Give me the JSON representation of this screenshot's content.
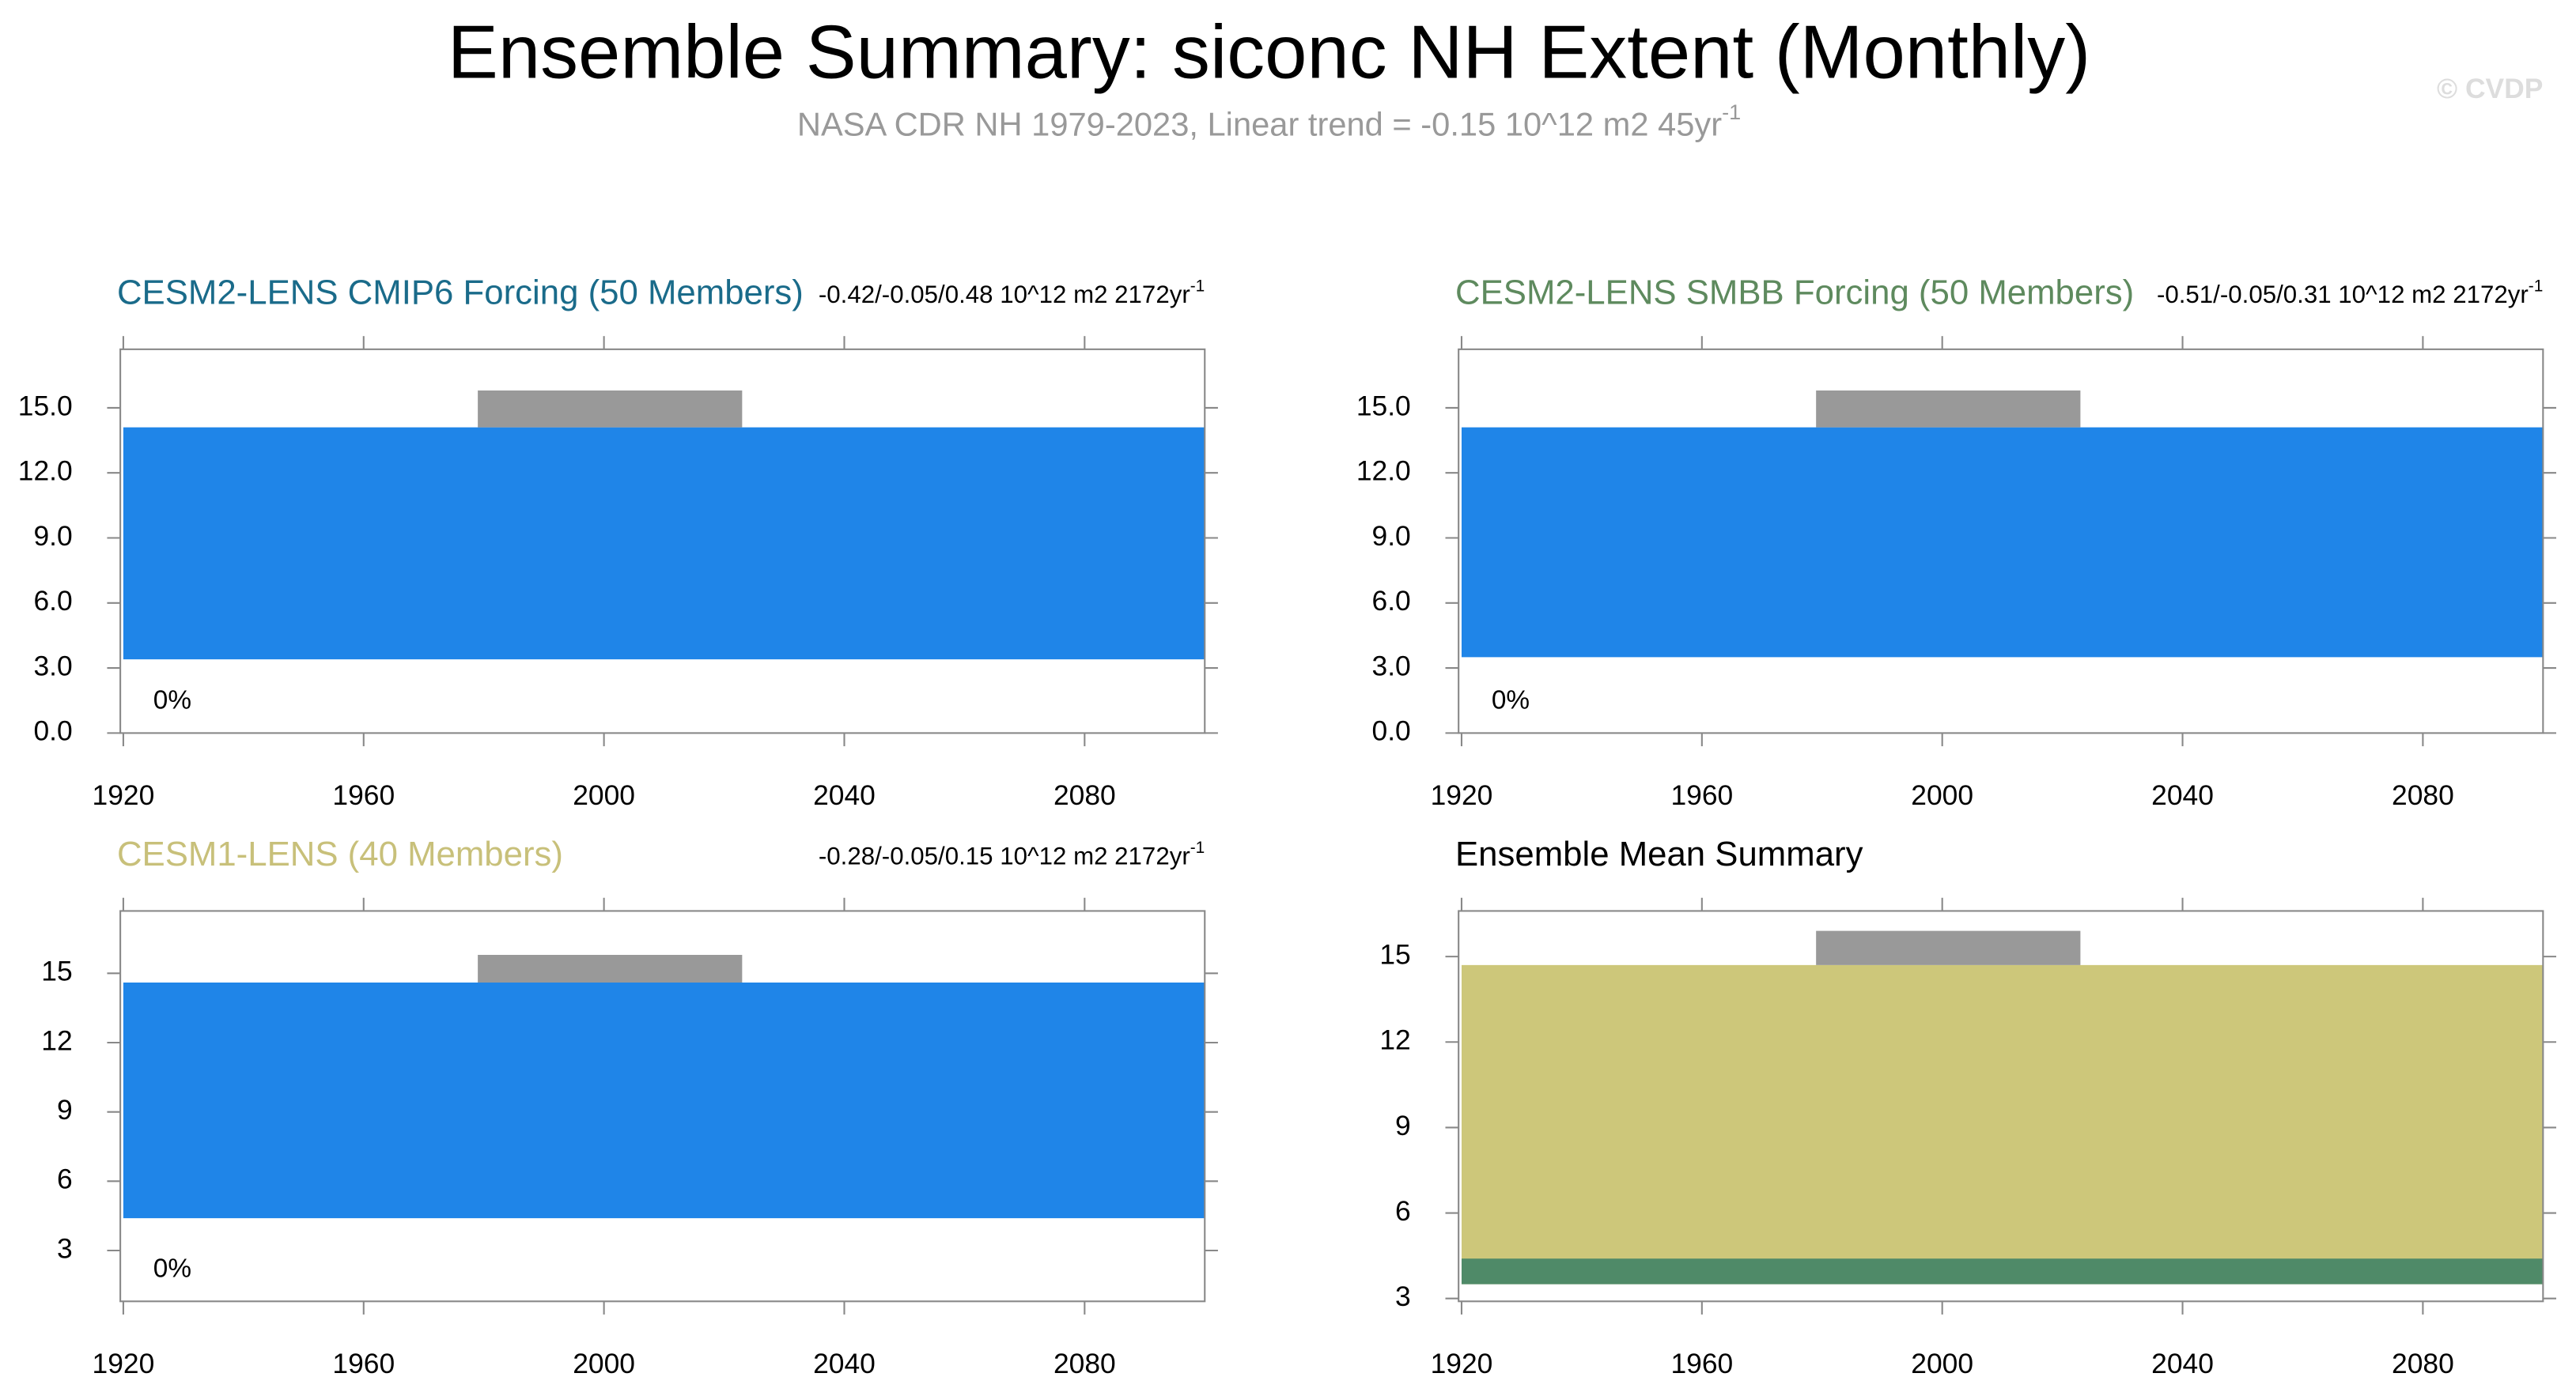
{
  "title": "Ensemble Summary: siconc NH Extent (Monthly)",
  "subtitle": "NASA CDR NH 1979-2023, Linear trend = -0.15 10^12 m2 45yr",
  "subtitle_sup": "-1",
  "copyright": "© CVDP",
  "chart_data": [
    {
      "type": "band",
      "title": "CESM2-LENS CMIP6 Forcing (50 Members)",
      "title_color": "#1a6b8a",
      "stats": "-0.42/-0.05/0.48 10^12 m2 2172yr",
      "stats_sup": "-1",
      "note": "0%",
      "xlim": [
        1919.5,
        2100
      ],
      "xticks": [
        1920,
        1960,
        2000,
        2040,
        2080
      ],
      "ylim": [
        0,
        17.7
      ],
      "yticks": [
        {
          "value": 0,
          "label": "0.0"
        },
        {
          "value": 3,
          "label": "3.0"
        },
        {
          "value": 6,
          "label": "6.0"
        },
        {
          "value": 9,
          "label": "9.0"
        },
        {
          "value": 12,
          "label": "12.0"
        },
        {
          "value": 15,
          "label": "15.0"
        }
      ],
      "series": [
        {
          "color": "#1f85e8",
          "x": [
            1920,
            2100
          ],
          "lower": [
            3.4,
            3.4
          ],
          "upper": [
            14.1,
            14.1
          ]
        },
        {
          "color": "#999999",
          "x": [
            1979,
            2023
          ],
          "lower": [
            14.1,
            14.1
          ],
          "upper": [
            15.8,
            15.8
          ]
        }
      ]
    },
    {
      "type": "band",
      "title": "CESM2-LENS SMBB Forcing (50 Members)",
      "title_color": "#5e8a5e",
      "stats": "-0.51/-0.05/0.31 10^12 m2 2172yr",
      "stats_sup": "-1",
      "note": "0%",
      "xlim": [
        1919.5,
        2100
      ],
      "xticks": [
        1920,
        1960,
        2000,
        2040,
        2080
      ],
      "ylim": [
        0,
        17.7
      ],
      "yticks": [
        {
          "value": 0,
          "label": "0.0"
        },
        {
          "value": 3,
          "label": "3.0"
        },
        {
          "value": 6,
          "label": "6.0"
        },
        {
          "value": 9,
          "label": "9.0"
        },
        {
          "value": 12,
          "label": "12.0"
        },
        {
          "value": 15,
          "label": "15.0"
        }
      ],
      "series": [
        {
          "color": "#1f85e8",
          "x": [
            1920,
            2100
          ],
          "lower": [
            3.5,
            3.5
          ],
          "upper": [
            14.1,
            14.1
          ]
        },
        {
          "color": "#999999",
          "x": [
            1979,
            2023
          ],
          "lower": [
            14.1,
            14.1
          ],
          "upper": [
            15.8,
            15.8
          ]
        }
      ]
    },
    {
      "type": "band",
      "title": "CESM1-LENS (40 Members)",
      "title_color": "#c8c07a",
      "stats": "-0.28/-0.05/0.15 10^12 m2 2172yr",
      "stats_sup": "-1",
      "note": "0%",
      "xlim": [
        1919.5,
        2100
      ],
      "xticks": [
        1920,
        1960,
        2000,
        2040,
        2080
      ],
      "ylim": [
        0.8,
        17.7
      ],
      "yticks": [
        3,
        6,
        9,
        12,
        15
      ],
      "series": [
        {
          "color": "#1f85e8",
          "x": [
            1920,
            2100
          ],
          "lower": [
            4.4,
            4.4
          ],
          "upper": [
            14.6,
            14.6
          ]
        },
        {
          "color": "#999999",
          "x": [
            1979,
            2023
          ],
          "lower": [
            14.6,
            14.6
          ],
          "upper": [
            15.8,
            15.8
          ]
        }
      ]
    },
    {
      "type": "band",
      "title": "Ensemble Mean Summary",
      "title_color": "#000000",
      "xlim": [
        1919.5,
        2100
      ],
      "xticks": [
        1920,
        1960,
        2000,
        2040,
        2080
      ],
      "ylim": [
        2.9,
        16.6
      ],
      "yticks": [
        3,
        6,
        9,
        12,
        15
      ],
      "series": [
        {
          "color": "#cdc77a",
          "x": [
            1920,
            2100
          ],
          "lower": [
            3.5,
            3.5
          ],
          "upper": [
            14.7,
            14.7
          ]
        },
        {
          "color": "#4f8a68",
          "x": [
            1920,
            2100
          ],
          "lower": [
            3.5,
            3.5
          ],
          "upper": [
            4.4,
            4.4
          ]
        },
        {
          "color": "#999999",
          "x": [
            1979,
            2023
          ],
          "lower": [
            14.7,
            14.7
          ],
          "upper": [
            15.9,
            15.9
          ]
        }
      ]
    }
  ]
}
